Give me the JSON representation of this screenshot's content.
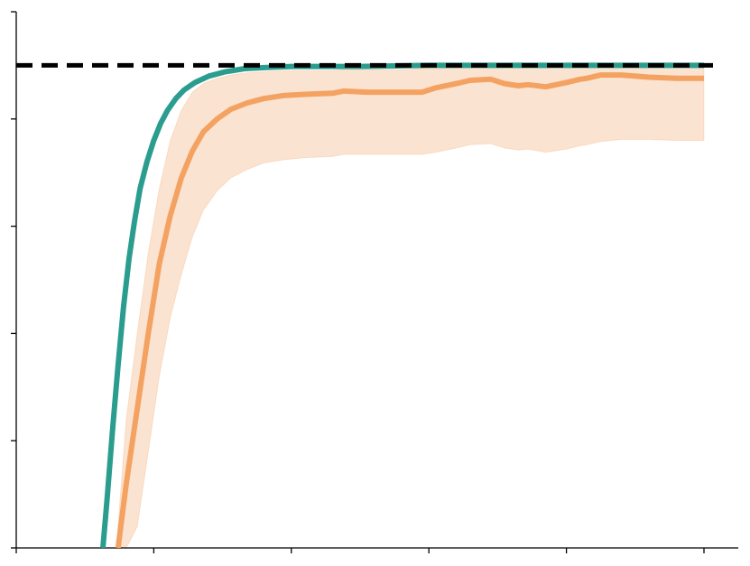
{
  "chart_data": {
    "type": "line",
    "title": "",
    "xlabel": "",
    "ylabel": "",
    "xlim": [
      0,
      5
    ],
    "ylim": [
      0,
      5
    ],
    "x_ticks": [
      0,
      1,
      2,
      3,
      4,
      5
    ],
    "y_ticks": [
      0,
      1,
      2,
      3,
      4,
      5
    ],
    "grid": false,
    "colors": {
      "teal": "#2a9d8f",
      "orange": "#f4a261",
      "band": "#fbe3d1",
      "reference": "#000000"
    },
    "reference_line": {
      "y": 4.5,
      "style": "dashed"
    },
    "series": [
      {
        "color": "#2a9d8f",
        "x": [
          0.63,
          0.66,
          0.7,
          0.74,
          0.78,
          0.82,
          0.86,
          0.9,
          0.95,
          1.0,
          1.05,
          1.1,
          1.16,
          1.22,
          1.3,
          1.4,
          1.52,
          1.66,
          1.82,
          2.0,
          2.5,
          3.0,
          3.5,
          4.0,
          4.5,
          5.0
        ],
        "y": [
          0.0,
          0.45,
          1.1,
          1.7,
          2.25,
          2.7,
          3.05,
          3.35,
          3.6,
          3.8,
          3.96,
          4.08,
          4.19,
          4.27,
          4.34,
          4.4,
          4.44,
          4.47,
          4.48,
          4.49,
          4.49,
          4.5,
          4.5,
          4.5,
          4.5,
          4.5
        ]
      },
      {
        "color": "#f4a261",
        "x": [
          0.74,
          0.8,
          0.88,
          0.96,
          1.04,
          1.12,
          1.2,
          1.28,
          1.36,
          1.46,
          1.56,
          1.68,
          1.8,
          1.95,
          2.1,
          2.3,
          2.38,
          2.55,
          2.8,
          2.95,
          3.05,
          3.2,
          3.3,
          3.45,
          3.55,
          3.65,
          3.72,
          3.85,
          4.0,
          4.1,
          4.15,
          4.25,
          4.4,
          4.6,
          4.8,
          5.0
        ],
        "y": [
          0.0,
          0.6,
          1.3,
          2.0,
          2.65,
          3.1,
          3.45,
          3.7,
          3.88,
          4.0,
          4.09,
          4.15,
          4.19,
          4.22,
          4.23,
          4.24,
          4.26,
          4.25,
          4.25,
          4.25,
          4.29,
          4.33,
          4.36,
          4.37,
          4.33,
          4.31,
          4.32,
          4.3,
          4.34,
          4.37,
          4.38,
          4.41,
          4.41,
          4.39,
          4.38,
          4.38
        ],
        "lower": [
          0.0,
          0.0,
          0.2,
          0.9,
          1.6,
          2.15,
          2.55,
          2.9,
          3.15,
          3.33,
          3.45,
          3.53,
          3.59,
          3.62,
          3.64,
          3.65,
          3.67,
          3.67,
          3.67,
          3.67,
          3.69,
          3.73,
          3.76,
          3.77,
          3.73,
          3.71,
          3.72,
          3.69,
          3.72,
          3.75,
          3.76,
          3.79,
          3.81,
          3.81,
          3.8,
          3.8
        ],
        "upper": [
          0.2,
          1.2,
          2.0,
          2.75,
          3.35,
          3.8,
          4.08,
          4.25,
          4.33,
          4.38,
          4.41,
          4.43,
          4.44,
          4.45,
          4.45,
          4.45,
          4.46,
          4.46,
          4.46,
          4.47,
          4.47,
          4.48,
          4.48,
          4.48,
          4.48,
          4.48,
          4.48,
          4.48,
          4.48,
          4.48,
          4.48,
          4.48,
          4.48,
          4.48,
          4.48,
          4.48
        ]
      }
    ]
  }
}
